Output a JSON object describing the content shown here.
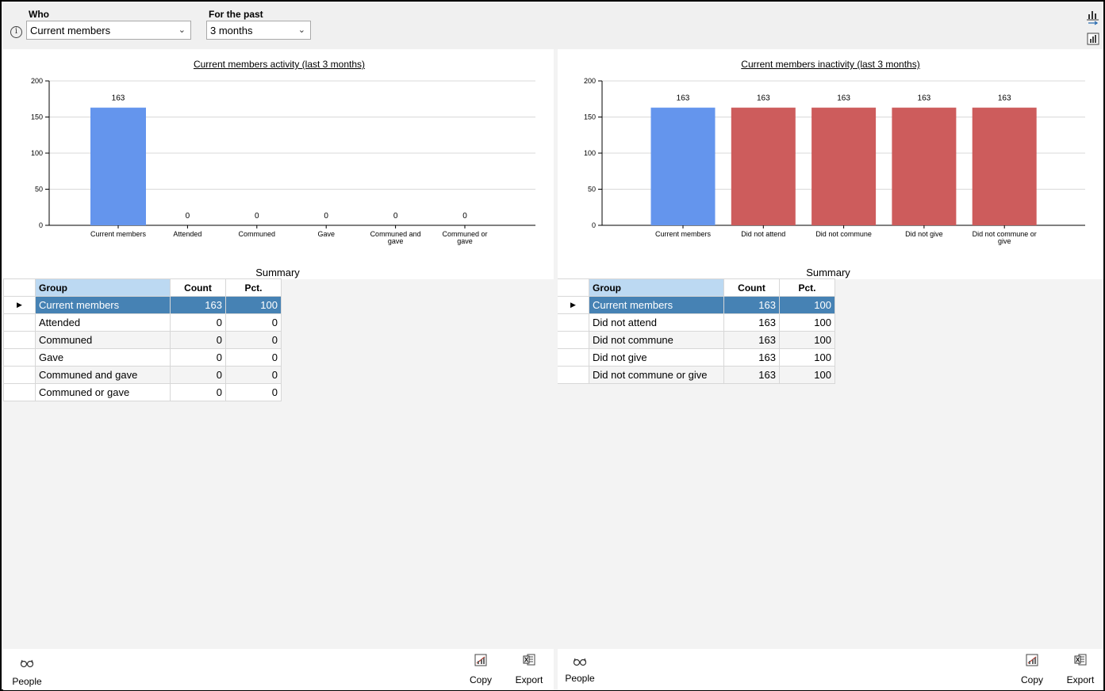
{
  "filters": {
    "who_label": "Who",
    "who_value": "Current members",
    "period_label": "For the past",
    "period_value": "3 months"
  },
  "icons": {
    "info": "info-icon",
    "chart_swap": "chart-swap-icon",
    "chart_numbers": "chart-numbers-icon",
    "people": "glasses-icon",
    "copy": "copy-chart-icon",
    "export": "excel-export-icon"
  },
  "left": {
    "chart_title": "Current members activity (last 3 months)",
    "summary_label": "Summary",
    "columns": [
      "Group",
      "Count",
      "Pct."
    ],
    "rows": [
      {
        "group": "Current members",
        "count": "163",
        "pct": "100"
      },
      {
        "group": "Attended",
        "count": "0",
        "pct": "0"
      },
      {
        "group": "Communed",
        "count": "0",
        "pct": "0"
      },
      {
        "group": "Gave",
        "count": "0",
        "pct": "0"
      },
      {
        "group": "Communed and gave",
        "count": "0",
        "pct": "0"
      },
      {
        "group": "Communed or gave",
        "count": "0",
        "pct": "0"
      }
    ],
    "toolbar": {
      "people": "People",
      "copy": "Copy",
      "export": "Export"
    }
  },
  "right": {
    "chart_title": "Current members inactivity (last 3 months)",
    "summary_label": "Summary",
    "columns": [
      "Group",
      "Count",
      "Pct."
    ],
    "rows": [
      {
        "group": "Current members",
        "count": "163",
        "pct": "100"
      },
      {
        "group": "Did not attend",
        "count": "163",
        "pct": "100"
      },
      {
        "group": "Did not commune",
        "count": "163",
        "pct": "100"
      },
      {
        "group": "Did not give",
        "count": "163",
        "pct": "100"
      },
      {
        "group": "Did not commune or give",
        "count": "163",
        "pct": "100"
      }
    ],
    "toolbar": {
      "people": "People",
      "copy": "Copy",
      "export": "Export"
    }
  },
  "colors": {
    "blue": "#6495ed",
    "red": "#cd5c5c",
    "selected_row": "#4682b4",
    "header": "#bcd9f2"
  },
  "chart_data": [
    {
      "type": "bar",
      "title": "Current members activity (last 3 months)",
      "categories": [
        [
          "Current members"
        ],
        [
          "Attended"
        ],
        [
          "Communed"
        ],
        [
          "Gave"
        ],
        [
          "Communed and",
          "gave"
        ],
        [
          "Communed or",
          "gave"
        ]
      ],
      "values": [
        163,
        0,
        0,
        0,
        0,
        0
      ],
      "colors": [
        "#6495ed",
        "#6495ed",
        "#6495ed",
        "#6495ed",
        "#6495ed",
        "#6495ed"
      ],
      "ylim": [
        0,
        200
      ],
      "yticks": [
        0,
        50,
        100,
        150,
        200
      ],
      "grid": true
    },
    {
      "type": "bar",
      "title": "Current members inactivity (last 3 months)",
      "categories": [
        [
          "Current members"
        ],
        [
          "Did not attend"
        ],
        [
          "Did not commune"
        ],
        [
          "Did not give"
        ],
        [
          "Did not commune or",
          "give"
        ]
      ],
      "values": [
        163,
        163,
        163,
        163,
        163
      ],
      "colors": [
        "#6495ed",
        "#cd5c5c",
        "#cd5c5c",
        "#cd5c5c",
        "#cd5c5c"
      ],
      "ylim": [
        0,
        200
      ],
      "yticks": [
        0,
        50,
        100,
        150,
        200
      ],
      "grid": true
    }
  ]
}
